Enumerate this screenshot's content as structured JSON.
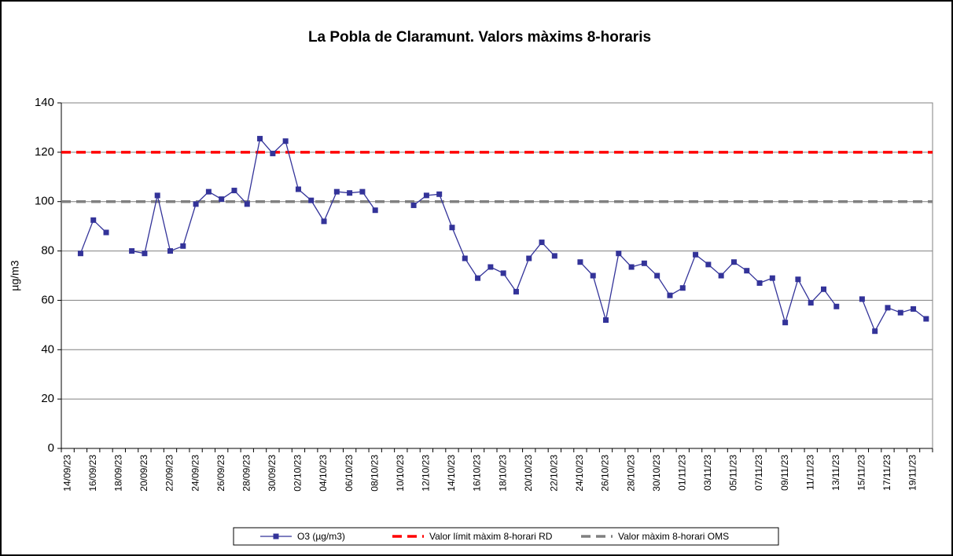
{
  "chart_data": {
    "type": "line",
    "title": "La Pobla de Claramunt. Valors màxims 8-horaris",
    "y_label": "µg/m3",
    "categories": [
      "14/09/23",
      null,
      "16/09/23",
      null,
      "18/09/23",
      null,
      "20/09/23",
      null,
      "22/09/23",
      null,
      "24/09/23",
      null,
      "26/09/23",
      null,
      "28/09/23",
      null,
      "30/09/23",
      null,
      "02/10/23",
      null,
      "04/10/23",
      null,
      "06/10/23",
      null,
      "08/10/23",
      null,
      "10/10/23",
      null,
      "12/10/23",
      null,
      "14/10/23",
      null,
      "16/10/23",
      null,
      "18/10/23",
      null,
      "20/10/23",
      null,
      "22/10/23",
      null,
      "24/10/23",
      null,
      "26/10/23",
      null,
      "28/10/23",
      null,
      "30/10/23",
      null,
      "01/11/23",
      null,
      "03/11/23",
      null,
      "05/11/23",
      null,
      "07/11/23",
      null,
      "09/11/23",
      null,
      "11/11/23",
      null,
      "13/11/23",
      null,
      "15/11/23",
      null,
      "17/11/23",
      null,
      "19/11/23",
      null
    ],
    "series": [
      {
        "name": "O3 (µg/m3)",
        "color": "#333399",
        "values": [
          null,
          79,
          92.5,
          87.5,
          null,
          80,
          79,
          102.5,
          80,
          82,
          99,
          104,
          101,
          104.5,
          99,
          125.5,
          119.5,
          124.5,
          105,
          100.5,
          92,
          104,
          103.5,
          104,
          96.5,
          null,
          null,
          98.5,
          102.5,
          103,
          89.5,
          77,
          69,
          73.5,
          71,
          63.5,
          77,
          83.5,
          78,
          null,
          75.5,
          70,
          52,
          79,
          73.5,
          75,
          70,
          62,
          65,
          78.5,
          74.5,
          70,
          75.5,
          72,
          67,
          69,
          51,
          68.5,
          59,
          64.5,
          57.5,
          null,
          60.5,
          47.5,
          57,
          55,
          56.5,
          52.5
        ]
      }
    ],
    "reference_lines": [
      {
        "name": "Valor límit màxim 8-horari RD",
        "value": 120,
        "color": "#ff0000"
      },
      {
        "name": "Valor màxim 8-horari OMS",
        "value": 100,
        "color": "#808080"
      }
    ],
    "ylim": [
      0,
      140
    ],
    "yticks": [
      0,
      20,
      40,
      60,
      80,
      100,
      120,
      140
    ],
    "grid": true,
    "legend": "bottom"
  }
}
